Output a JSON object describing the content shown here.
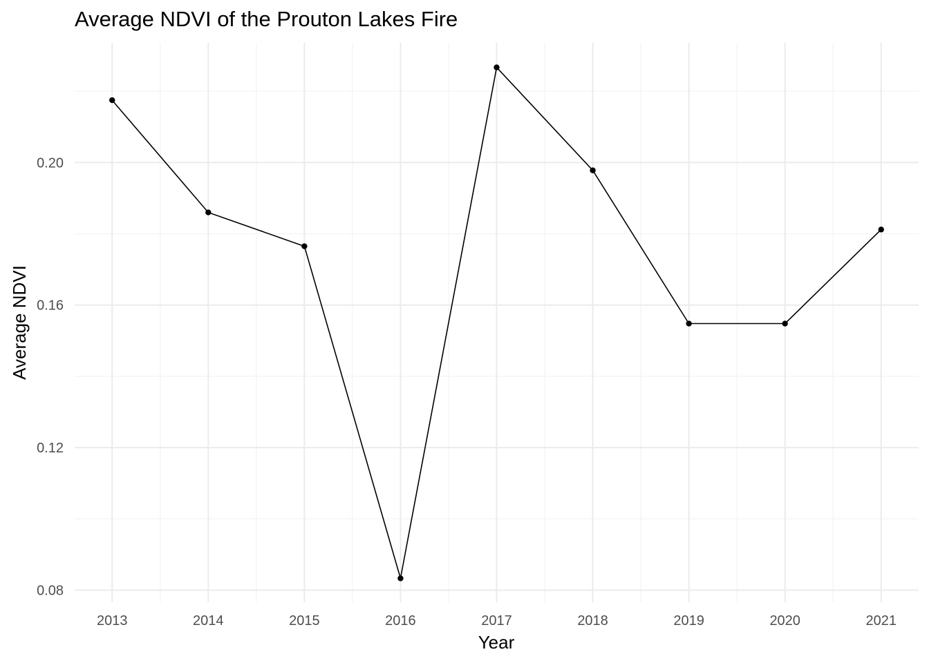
{
  "chart_data": {
    "type": "line",
    "title": "Average NDVI of the Prouton Lakes Fire",
    "xlabel": "Year",
    "ylabel": "Average NDVI",
    "x": [
      2013,
      2014,
      2015,
      2016,
      2017,
      2018,
      2019,
      2020,
      2021
    ],
    "series": [
      {
        "values": [
          0.2175,
          0.186,
          0.1765,
          0.0833,
          0.2267,
          0.1978,
          0.1548,
          0.1548,
          0.1812
        ]
      }
    ],
    "x_ticks": [
      "2013",
      "2014",
      "2015",
      "2016",
      "2017",
      "2018",
      "2019",
      "2020",
      "2021"
    ],
    "y_ticks": [
      "0.08",
      "0.12",
      "0.16",
      "0.20"
    ],
    "xlim": [
      2012.61,
      2021.39
    ],
    "ylim": [
      0.0766,
      0.2336
    ],
    "grid": true,
    "legend": "none",
    "colors": {
      "line": "#000000",
      "point": "#000000",
      "grid_major": "#ebebeb",
      "grid_minor": "#f3f3f3",
      "tick_text": "#4d4d4d"
    }
  }
}
